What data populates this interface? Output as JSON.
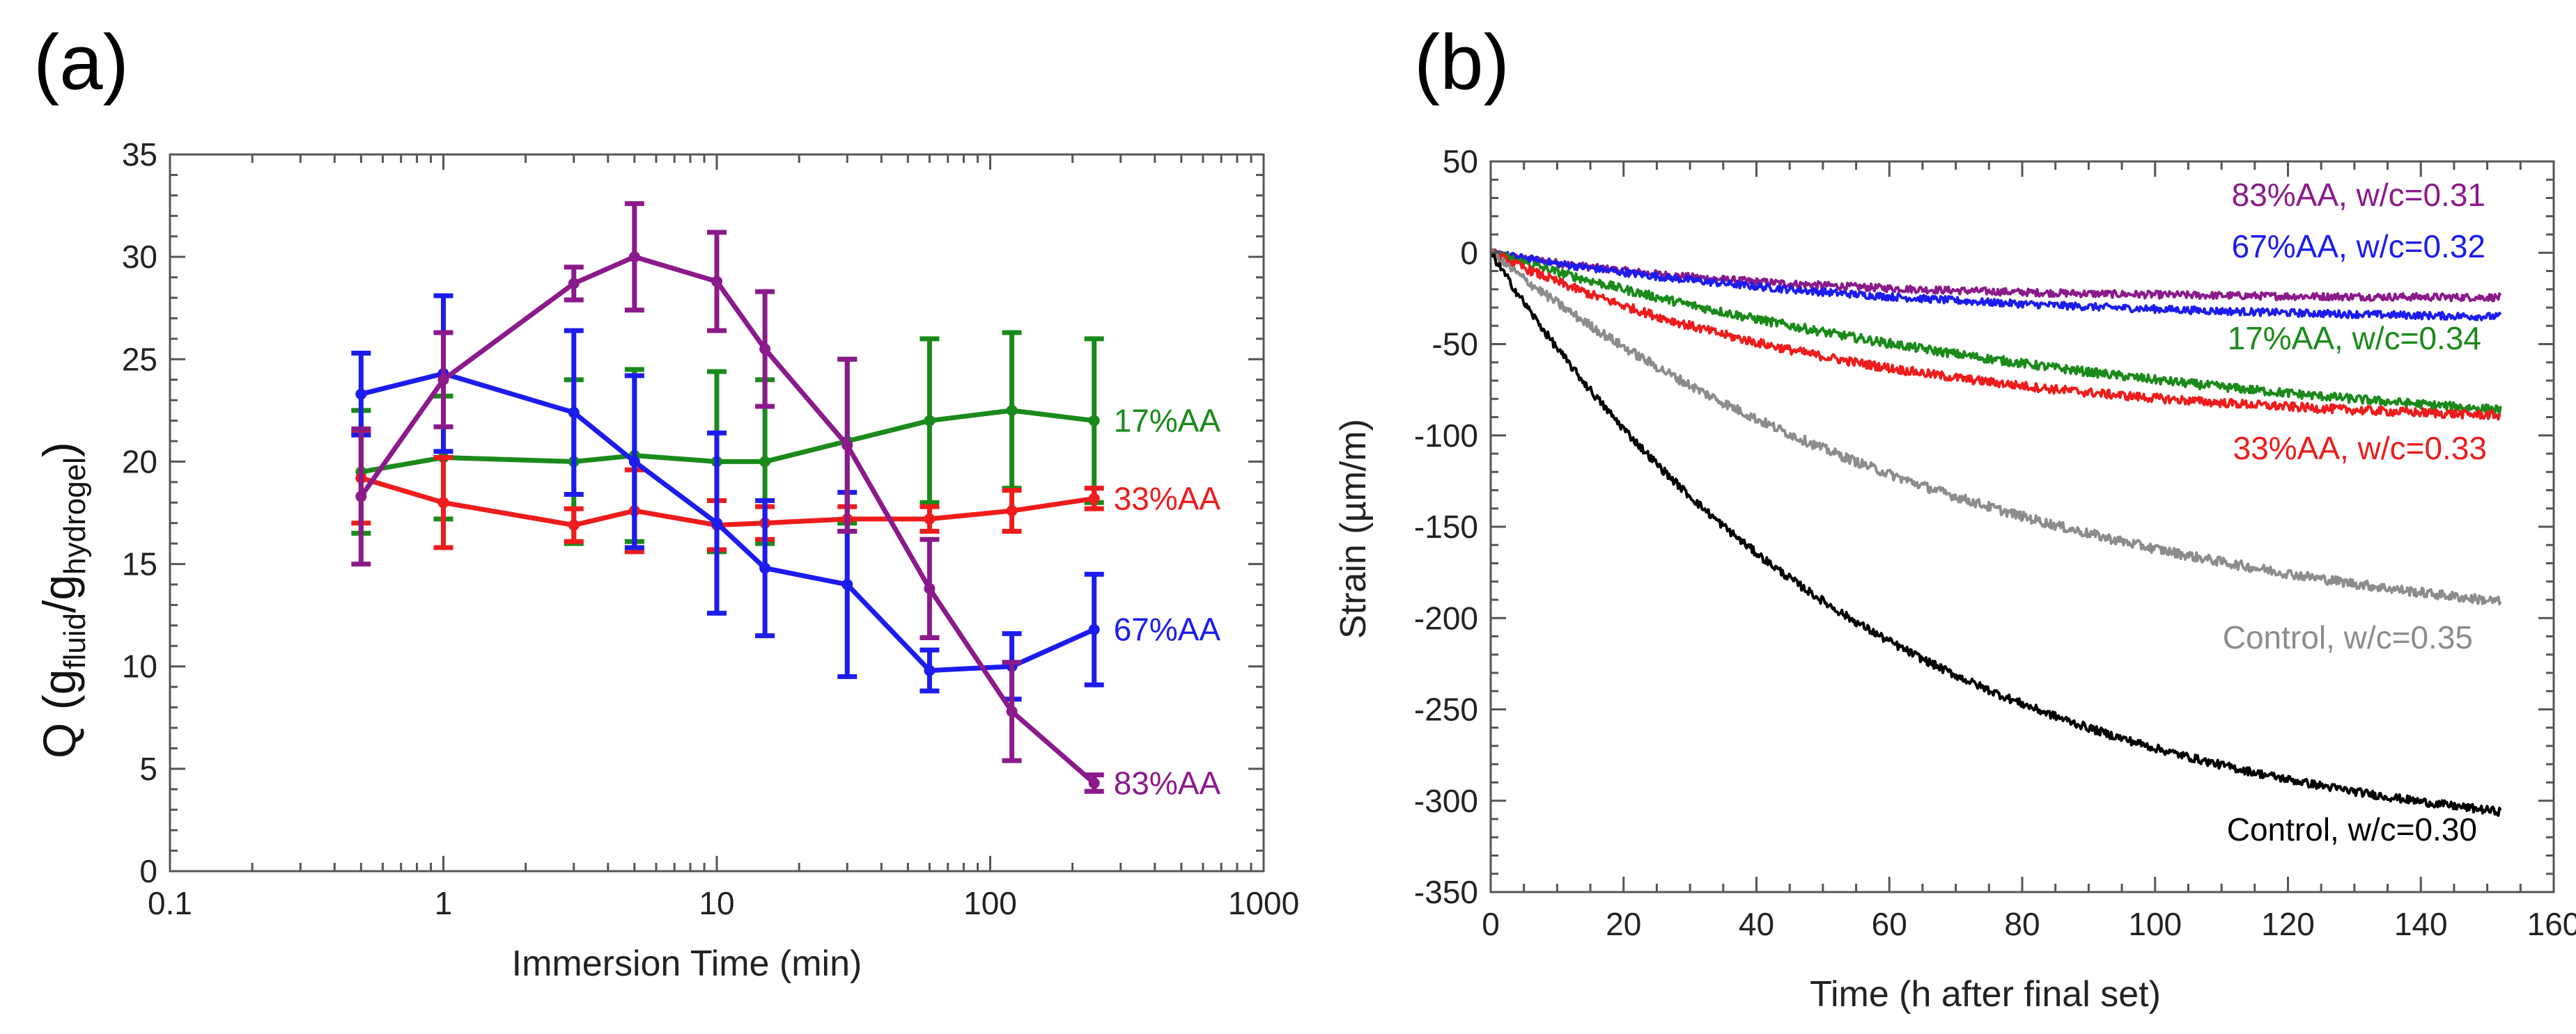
{
  "chart_data": [
    {
      "panel": "(a)",
      "type": "line",
      "x_scale": "log",
      "xlabel": "Immersion Time (min)",
      "ylabel_main": "Q (",
      "ylabel_sub1": "fluid",
      "ylabel_sep": "/",
      "ylabel_sub2": "hydrogel",
      "ylabel_close": ")",
      "ylabel_g": "g",
      "xlim": [
        0.1,
        1000
      ],
      "ylim": [
        0,
        35
      ],
      "xticks": [
        0.1,
        1,
        10,
        100,
        1000
      ],
      "xtick_labels": [
        "0.1",
        "1",
        "10",
        "100",
        "1000"
      ],
      "yticks": [
        0,
        5,
        10,
        15,
        20,
        25,
        30,
        35
      ],
      "ytick_labels": [
        "0",
        "5",
        "10",
        "15",
        "20",
        "25",
        "30",
        "35"
      ],
      "series": [
        {
          "name": "17%AA",
          "label": "17%AA",
          "color": "#1a8a1a",
          "x": [
            0.5,
            1,
            3,
            5,
            10,
            15,
            30,
            60,
            120,
            240
          ],
          "y": [
            19.5,
            20.2,
            20.0,
            20.3,
            20.0,
            20.0,
            21.0,
            22.0,
            22.5,
            22.0
          ],
          "err": [
            3.0,
            3.0,
            4.0,
            4.2,
            4.4,
            4.0,
            4.0,
            4.0,
            3.8,
            4.0
          ]
        },
        {
          "name": "33%AA",
          "label": "33%AA",
          "color": "#ee1c1c",
          "x": [
            0.5,
            1,
            3,
            5,
            10,
            15,
            30,
            60,
            120,
            240
          ],
          "y": [
            19.2,
            18.0,
            16.9,
            17.6,
            16.9,
            17.0,
            17.2,
            17.2,
            17.6,
            18.2
          ],
          "err": [
            2.2,
            2.2,
            0.8,
            2.0,
            1.2,
            0.8,
            0.6,
            0.6,
            1.0,
            0.5
          ]
        },
        {
          "name": "67%AA",
          "label": "67%AA",
          "color": "#1c1cee",
          "x": [
            0.5,
            1,
            3,
            5,
            10,
            15,
            30,
            60,
            120,
            240
          ],
          "y": [
            23.3,
            24.3,
            22.4,
            20.0,
            17.0,
            14.8,
            14.0,
            9.8,
            10.0,
            11.8
          ],
          "err": [
            2.0,
            3.8,
            4.0,
            4.2,
            4.4,
            3.3,
            4.5,
            1.0,
            1.6,
            2.7
          ]
        },
        {
          "name": "83%AA",
          "label": "83%AA",
          "color": "#8b1a8b",
          "x": [
            0.5,
            1,
            3,
            5,
            10,
            15,
            30,
            60,
            120,
            240
          ],
          "y": [
            18.3,
            24.0,
            28.7,
            30.0,
            28.8,
            25.5,
            20.8,
            13.8,
            7.8,
            4.3
          ],
          "err": [
            3.3,
            2.3,
            0.8,
            2.6,
            2.4,
            2.8,
            4.2,
            2.4,
            2.4,
            0.4
          ]
        }
      ]
    },
    {
      "panel": "(b)",
      "type": "line",
      "xlabel": "Time (h  after final set)",
      "ylabel": "Strain (µm/m)",
      "xlim": [
        0,
        160
      ],
      "ylim": [
        -350,
        50
      ],
      "xticks": [
        0,
        20,
        40,
        60,
        80,
        100,
        120,
        140,
        160
      ],
      "xtick_labels": [
        "0",
        "20",
        "40",
        "60",
        "80",
        "100",
        "120",
        "140",
        "160"
      ],
      "yticks": [
        50,
        0,
        -50,
        -100,
        -150,
        -200,
        -250,
        -300,
        -350
      ],
      "ytick_labels": [
        "50",
        "0",
        "-50",
        "-100",
        "-150",
        "-200",
        "-250",
        "-300",
        "-350"
      ],
      "series": [
        {
          "name": "83%AA, w/c=0.31",
          "label": "83%AA, w/c=0.31",
          "color": "#8b1a8b",
          "final": -25,
          "tau": 40,
          "noise": 2.0
        },
        {
          "name": "67%AA, w/c=0.32",
          "label": "67%AA, w/c=0.32",
          "color": "#1c1cee",
          "final": -38,
          "tau": 60,
          "noise": 2.0
        },
        {
          "name": "17%AA, w/c=0.34",
          "label": "17%AA, w/c=0.34",
          "color": "#1a8a1a",
          "final": -110,
          "tau": 100,
          "noise": 2.4
        },
        {
          "name": "33%AA, w/c=0.33",
          "label": "33%AA, w/c=0.33",
          "color": "#ee1c1c",
          "final": -95,
          "tau": 55,
          "noise": 2.4
        },
        {
          "name": "Control, w/c=0.35",
          "label": "Control, w/c=0.35",
          "color": "#8c8c8c",
          "final": -220,
          "tau": 75,
          "noise": 2.6
        },
        {
          "name": "Control, w/c=0.30",
          "label": "Control, w/c=0.30",
          "color": "#000000",
          "final": -330,
          "tau": 58,
          "noise": 2.2
        }
      ],
      "t_end": 152
    }
  ]
}
